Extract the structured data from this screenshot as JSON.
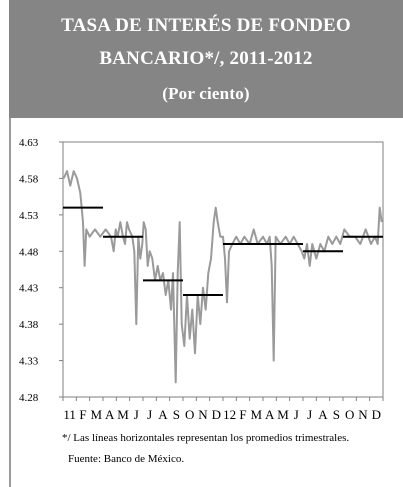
{
  "header": {
    "title_line1": "TASA DE INTERÉS DE FONDEO",
    "title_line2": "BANCARIO*/, 2011-2012",
    "subtitle": "(Por ciento)"
  },
  "footnote": "*/ Las líneas horizontales representan los promedios trimestrales.",
  "source": "Fuente: Banco de México.",
  "chart_data": {
    "type": "line",
    "title": "TASA DE INTERÉS DE FONDEO BANCARIO*/, 2011-2012",
    "subtitle": "(Por ciento)",
    "xlabel": "",
    "ylabel": "",
    "ylim": [
      4.28,
      4.63
    ],
    "yticks": [
      "4.63",
      "4.58",
      "4.53",
      "4.48",
      "4.43",
      "4.38",
      "4.33",
      "4.28"
    ],
    "xlim": [
      0,
      24
    ],
    "x_tick_labels": [
      "11",
      "F",
      "M",
      "A",
      "M",
      "J",
      "J",
      "A",
      "S",
      "O",
      "N",
      "D",
      "12",
      "F",
      "M",
      "A",
      "M",
      "J",
      "J",
      "A",
      "S",
      "O",
      "N",
      "D"
    ],
    "grid": false,
    "series": [
      {
        "values": [
          [
            0.05,
            4.58
          ],
          [
            0.3,
            4.59
          ],
          [
            0.55,
            4.57
          ],
          [
            0.8,
            4.59
          ],
          [
            1.05,
            4.58
          ],
          [
            1.3,
            4.56
          ],
          [
            1.5,
            4.52
          ],
          [
            1.62,
            4.46
          ],
          [
            1.75,
            4.51
          ],
          [
            2.0,
            4.5
          ],
          [
            2.4,
            4.51
          ],
          [
            2.8,
            4.5
          ],
          [
            3.2,
            4.51
          ],
          [
            3.6,
            4.5
          ],
          [
            3.8,
            4.48
          ],
          [
            3.95,
            4.51
          ],
          [
            4.1,
            4.5
          ],
          [
            4.3,
            4.52
          ],
          [
            4.5,
            4.5
          ],
          [
            4.65,
            4.49
          ],
          [
            4.8,
            4.52
          ],
          [
            4.95,
            4.51
          ],
          [
            5.2,
            4.5
          ],
          [
            5.35,
            4.48
          ],
          [
            5.5,
            4.38
          ],
          [
            5.65,
            4.5
          ],
          [
            5.8,
            4.47
          ],
          [
            5.95,
            4.49
          ],
          [
            6.05,
            4.52
          ],
          [
            6.2,
            4.51
          ],
          [
            6.35,
            4.46
          ],
          [
            6.5,
            4.48
          ],
          [
            6.7,
            4.47
          ],
          [
            6.9,
            4.44
          ],
          [
            7.1,
            4.46
          ],
          [
            7.3,
            4.44
          ],
          [
            7.5,
            4.45
          ],
          [
            7.7,
            4.42
          ],
          [
            7.9,
            4.44
          ],
          [
            8.1,
            4.4
          ],
          [
            8.25,
            4.45
          ],
          [
            8.45,
            4.3
          ],
          [
            8.6,
            4.45
          ],
          [
            8.75,
            4.52
          ],
          [
            8.9,
            4.38
          ],
          [
            9.1,
            4.35
          ],
          [
            9.3,
            4.42
          ],
          [
            9.5,
            4.36
          ],
          [
            9.7,
            4.4
          ],
          [
            9.9,
            4.34
          ],
          [
            10.1,
            4.42
          ],
          [
            10.3,
            4.38
          ],
          [
            10.5,
            4.43
          ],
          [
            10.7,
            4.4
          ],
          [
            10.9,
            4.45
          ],
          [
            11.1,
            4.47
          ],
          [
            11.3,
            4.52
          ],
          [
            11.45,
            4.54
          ],
          [
            11.6,
            4.52
          ],
          [
            11.8,
            4.5
          ],
          [
            12.0,
            4.5
          ],
          [
            12.15,
            4.47
          ],
          [
            12.3,
            4.41
          ],
          [
            12.45,
            4.48
          ],
          [
            12.7,
            4.49
          ],
          [
            13.0,
            4.5
          ],
          [
            13.3,
            4.49
          ],
          [
            13.6,
            4.5
          ],
          [
            14.0,
            4.49
          ],
          [
            14.3,
            4.51
          ],
          [
            14.6,
            4.49
          ],
          [
            15.0,
            4.5
          ],
          [
            15.3,
            4.49
          ],
          [
            15.5,
            4.5
          ],
          [
            15.65,
            4.46
          ],
          [
            15.8,
            4.33
          ],
          [
            15.95,
            4.5
          ],
          [
            16.3,
            4.49
          ],
          [
            16.7,
            4.5
          ],
          [
            17.0,
            4.49
          ],
          [
            17.3,
            4.5
          ],
          [
            17.6,
            4.49
          ],
          [
            17.9,
            4.48
          ],
          [
            18.1,
            4.47
          ],
          [
            18.3,
            4.49
          ],
          [
            18.5,
            4.46
          ],
          [
            18.7,
            4.49
          ],
          [
            19.0,
            4.47
          ],
          [
            19.3,
            4.49
          ],
          [
            19.6,
            4.48
          ],
          [
            19.9,
            4.5
          ],
          [
            20.2,
            4.49
          ],
          [
            20.5,
            4.5
          ],
          [
            20.8,
            4.49
          ],
          [
            21.1,
            4.51
          ],
          [
            21.5,
            4.5
          ],
          [
            21.9,
            4.5
          ],
          [
            22.3,
            4.49
          ],
          [
            22.7,
            4.51
          ],
          [
            23.1,
            4.49
          ],
          [
            23.4,
            4.5
          ],
          [
            23.6,
            4.49
          ],
          [
            23.75,
            4.54
          ],
          [
            23.9,
            4.52
          ]
        ]
      }
    ],
    "quarterly_averages": [
      {
        "x_start": 0,
        "x_end": 3,
        "value": 4.54
      },
      {
        "x_start": 3,
        "x_end": 6,
        "value": 4.5
      },
      {
        "x_start": 6,
        "x_end": 9,
        "value": 4.44
      },
      {
        "x_start": 9,
        "x_end": 12,
        "value": 4.42
      },
      {
        "x_start": 12,
        "x_end": 15,
        "value": 4.49
      },
      {
        "x_start": 15,
        "x_end": 18,
        "value": 4.49
      },
      {
        "x_start": 18,
        "x_end": 21,
        "value": 4.48
      },
      {
        "x_start": 21,
        "x_end": 24,
        "value": 4.5
      }
    ],
    "colors": {
      "series": "#9a9a9a",
      "averages": "#000000",
      "header_bg": "#858585"
    }
  }
}
